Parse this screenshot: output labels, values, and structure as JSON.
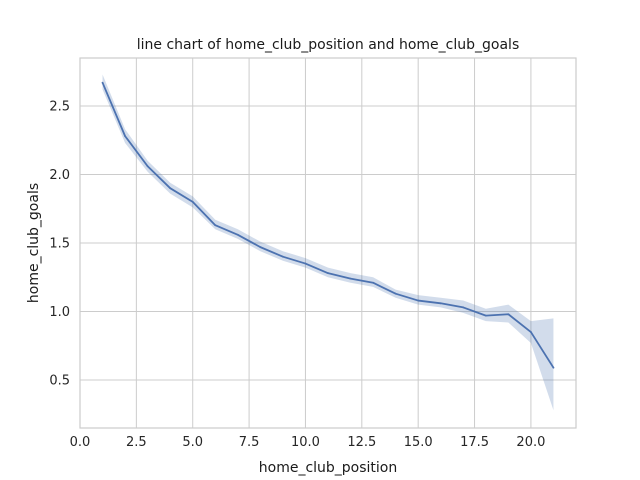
{
  "chart_data": {
    "type": "line",
    "title": "line chart of home_club_position and home_club_goals",
    "xlabel": "home_club_position",
    "ylabel": "home_club_goals",
    "xlim": [
      0.0,
      22.0
    ],
    "ylim": [
      0.15,
      2.85
    ],
    "xticks": [
      0.0,
      2.5,
      5.0,
      7.5,
      10.0,
      12.5,
      15.0,
      17.5,
      20.0
    ],
    "yticks": [
      0.5,
      1.0,
      1.5,
      2.0,
      2.5
    ],
    "grid": true,
    "style": {
      "line_color": "#4c72b0",
      "band_color": "#4c72b0",
      "band_opacity": 0.25
    },
    "series": [
      {
        "x": [
          1,
          2,
          3,
          4,
          5,
          6,
          7,
          8,
          9,
          10,
          11,
          12,
          13,
          14,
          15,
          16,
          17,
          18,
          19,
          20,
          21
        ],
        "values": [
          2.67,
          2.28,
          2.06,
          1.9,
          1.8,
          1.63,
          1.56,
          1.47,
          1.4,
          1.35,
          1.28,
          1.24,
          1.21,
          1.13,
          1.08,
          1.06,
          1.03,
          0.97,
          0.98,
          0.85,
          0.59
        ],
        "ci_low": [
          2.62,
          2.23,
          2.02,
          1.86,
          1.76,
          1.6,
          1.53,
          1.44,
          1.37,
          1.32,
          1.25,
          1.21,
          1.18,
          1.1,
          1.05,
          1.03,
          0.99,
          0.93,
          0.92,
          0.77,
          0.28
        ],
        "ci_high": [
          2.73,
          2.33,
          2.1,
          1.94,
          1.84,
          1.67,
          1.6,
          1.51,
          1.44,
          1.39,
          1.32,
          1.28,
          1.25,
          1.16,
          1.12,
          1.1,
          1.08,
          1.02,
          1.05,
          0.93,
          0.95
        ]
      }
    ]
  }
}
